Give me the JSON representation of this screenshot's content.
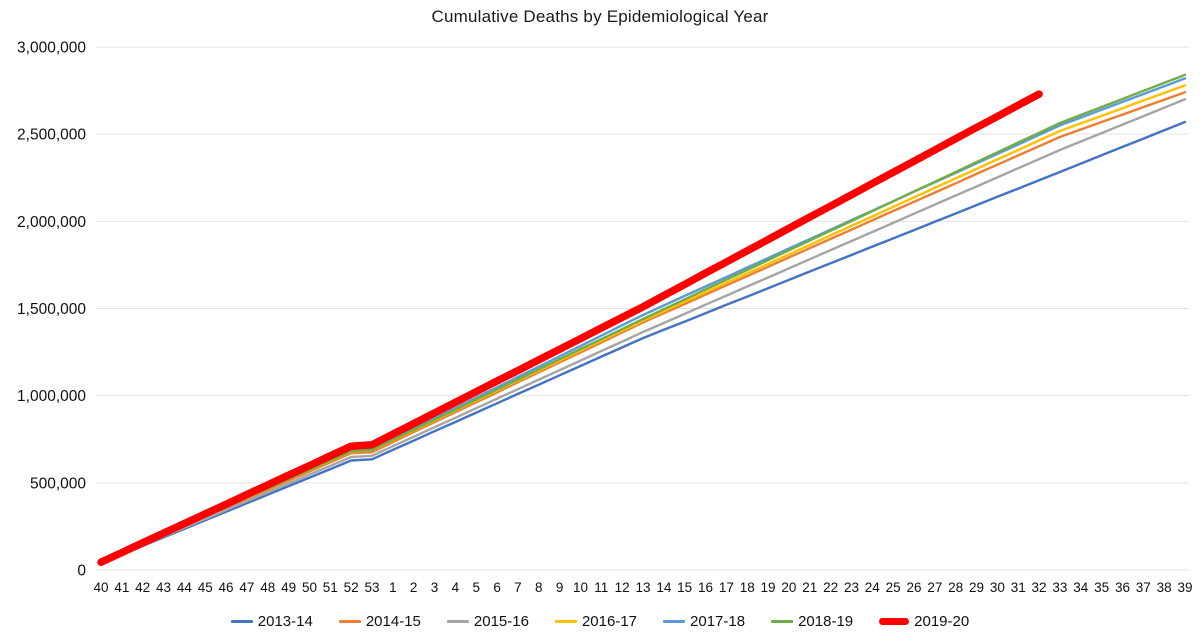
{
  "title": "Cumulative Deaths by Epidemiological Year",
  "colors": {
    "background": "#ffffff",
    "gridline": "#e3e3e3",
    "text": "#111111"
  },
  "chart_data": {
    "type": "line",
    "title": "Cumulative Deaths by Epidemiological Year",
    "xlabel": "",
    "ylabel": "",
    "ylim": [
      0,
      3000000
    ],
    "grid": "horizontal",
    "legend_position": "bottom",
    "yticks": [
      {
        "value": 0,
        "label": "0"
      },
      {
        "value": 500000,
        "label": "500,000"
      },
      {
        "value": 1000000,
        "label": "1,000,000"
      },
      {
        "value": 1500000,
        "label": "1,500,000"
      },
      {
        "value": 2000000,
        "label": "2,000,000"
      },
      {
        "value": 2500000,
        "label": "2,500,000"
      },
      {
        "value": 3000000,
        "label": "3,000,000"
      }
    ],
    "categories": [
      "40",
      "41",
      "42",
      "43",
      "44",
      "45",
      "46",
      "47",
      "48",
      "49",
      "50",
      "51",
      "52",
      "53",
      "1",
      "2",
      "3",
      "4",
      "5",
      "6",
      "7",
      "8",
      "9",
      "10",
      "11",
      "12",
      "13",
      "14",
      "15",
      "16",
      "17",
      "18",
      "19",
      "20",
      "21",
      "22",
      "23",
      "24",
      "25",
      "26",
      "27",
      "28",
      "29",
      "30",
      "31",
      "32",
      "33",
      "34",
      "35",
      "36",
      "37",
      "38",
      "39"
    ],
    "series": [
      {
        "name": "2013-14",
        "color": "#4472C4",
        "thick": false,
        "values": [
          40000,
          89000,
          138000,
          187000,
          236000,
          285000,
          334000,
          383000,
          432000,
          481000,
          530000,
          579000,
          628000,
          635000,
          689000,
          742000,
          796000,
          849000,
          903000,
          956000,
          1010000,
          1063000,
          1117000,
          1170000,
          1224000,
          1277000,
          1330000,
          1378000,
          1425000,
          1473000,
          1521000,
          1568000,
          1616000,
          1664000,
          1712000,
          1759000,
          1807000,
          1855000,
          1902000,
          1950000,
          1998000,
          2045000,
          2093000,
          2141000,
          2188000,
          2236000,
          2283000,
          2331000,
          2379000,
          2427000,
          2474000,
          2522000,
          2570000
        ]
      },
      {
        "name": "2014-15",
        "color": "#ED7D31",
        "thick": false,
        "values": [
          40000,
          93000,
          145000,
          198000,
          250000,
          303000,
          355000,
          408000,
          460000,
          513000,
          565000,
          618000,
          670000,
          676000,
          733000,
          791000,
          848000,
          905000,
          962000,
          1019000,
          1077000,
          1134000,
          1191000,
          1248000,
          1305000,
          1363000,
          1420000,
          1473000,
          1526000,
          1580000,
          1633000,
          1686000,
          1739000,
          1793000,
          1846000,
          1899000,
          1952000,
          2006000,
          2059000,
          2112000,
          2165000,
          2218000,
          2272000,
          2325000,
          2378000,
          2431000,
          2484000,
          2527000,
          2570000,
          2612000,
          2655000,
          2697000,
          2740000
        ]
      },
      {
        "name": "2015-16",
        "color": "#A5A5A5",
        "thick": false,
        "values": [
          40000,
          91000,
          141000,
          192000,
          243000,
          293000,
          344000,
          395000,
          445000,
          496000,
          547000,
          597000,
          648000,
          655000,
          710000,
          764000,
          819000,
          873000,
          928000,
          983000,
          1037000,
          1092000,
          1146000,
          1201000,
          1256000,
          1310000,
          1365000,
          1417000,
          1469000,
          1522000,
          1574000,
          1626000,
          1678000,
          1730000,
          1783000,
          1835000,
          1887000,
          1939000,
          1991000,
          2044000,
          2096000,
          2148000,
          2200000,
          2252000,
          2305000,
          2357000,
          2409000,
          2458000,
          2506000,
          2555000,
          2603000,
          2652000,
          2700000
        ]
      },
      {
        "name": "2016-17",
        "color": "#FFC000",
        "thick": false,
        "values": [
          40000,
          93000,
          147000,
          200000,
          253000,
          307000,
          360000,
          413000,
          467000,
          520000,
          573000,
          627000,
          680000,
          687000,
          744000,
          801000,
          858000,
          916000,
          973000,
          1030000,
          1087000,
          1144000,
          1201000,
          1259000,
          1316000,
          1373000,
          1430000,
          1484000,
          1539000,
          1593000,
          1648000,
          1702000,
          1756000,
          1811000,
          1865000,
          1920000,
          1974000,
          2028000,
          2083000,
          2137000,
          2192000,
          2246000,
          2300000,
          2355000,
          2409000,
          2464000,
          2518000,
          2562000,
          2605000,
          2649000,
          2693000,
          2736000,
          2780000
        ]
      },
      {
        "name": "2017-18",
        "color": "#5B9BD5",
        "thick": false,
        "values": [
          40000,
          94000,
          148000,
          201000,
          255000,
          309000,
          363000,
          416000,
          470000,
          524000,
          578000,
          631000,
          685000,
          692000,
          751000,
          811000,
          870000,
          929000,
          989000,
          1048000,
          1107000,
          1166000,
          1226000,
          1285000,
          1344000,
          1404000,
          1463000,
          1517000,
          1572000,
          1626000,
          1680000,
          1735000,
          1789000,
          1844000,
          1898000,
          1952000,
          2007000,
          2061000,
          2115000,
          2170000,
          2224000,
          2278000,
          2333000,
          2387000,
          2441000,
          2496000,
          2550000,
          2595000,
          2640000,
          2685000,
          2730000,
          2775000,
          2820000
        ]
      },
      {
        "name": "2018-19",
        "color": "#70AD47",
        "thick": false,
        "values": [
          40000,
          94000,
          147000,
          201000,
          254000,
          308000,
          361000,
          415000,
          468000,
          522000,
          575000,
          629000,
          682000,
          689000,
          747000,
          805000,
          862000,
          920000,
          978000,
          1036000,
          1093000,
          1151000,
          1209000,
          1267000,
          1324000,
          1382000,
          1440000,
          1496000,
          1552000,
          1609000,
          1665000,
          1721000,
          1777000,
          1834000,
          1890000,
          1946000,
          2002000,
          2058000,
          2115000,
          2171000,
          2227000,
          2283000,
          2340000,
          2396000,
          2452000,
          2508000,
          2564000,
          2610000,
          2656000,
          2702000,
          2748000,
          2794000,
          2840000
        ]
      },
      {
        "name": "2019-20",
        "color": "#FF0000",
        "thick": true,
        "values": [
          45000,
          100000,
          156000,
          211000,
          267000,
          322000,
          377000,
          433000,
          488000,
          544000,
          599000,
          655000,
          710000,
          718000,
          779000,
          840000,
          901000,
          962000,
          1023000,
          1084000,
          1144000,
          1205000,
          1266000,
          1327000,
          1388000,
          1449000,
          1510000,
          1574000,
          1638000,
          1703000,
          1767000,
          1831000,
          1895000,
          1960000,
          2024000,
          2088000,
          2152000,
          2217000,
          2281000,
          2345000,
          2409000,
          2474000,
          2538000,
          2602000,
          2666000,
          2730000
        ]
      }
    ]
  }
}
